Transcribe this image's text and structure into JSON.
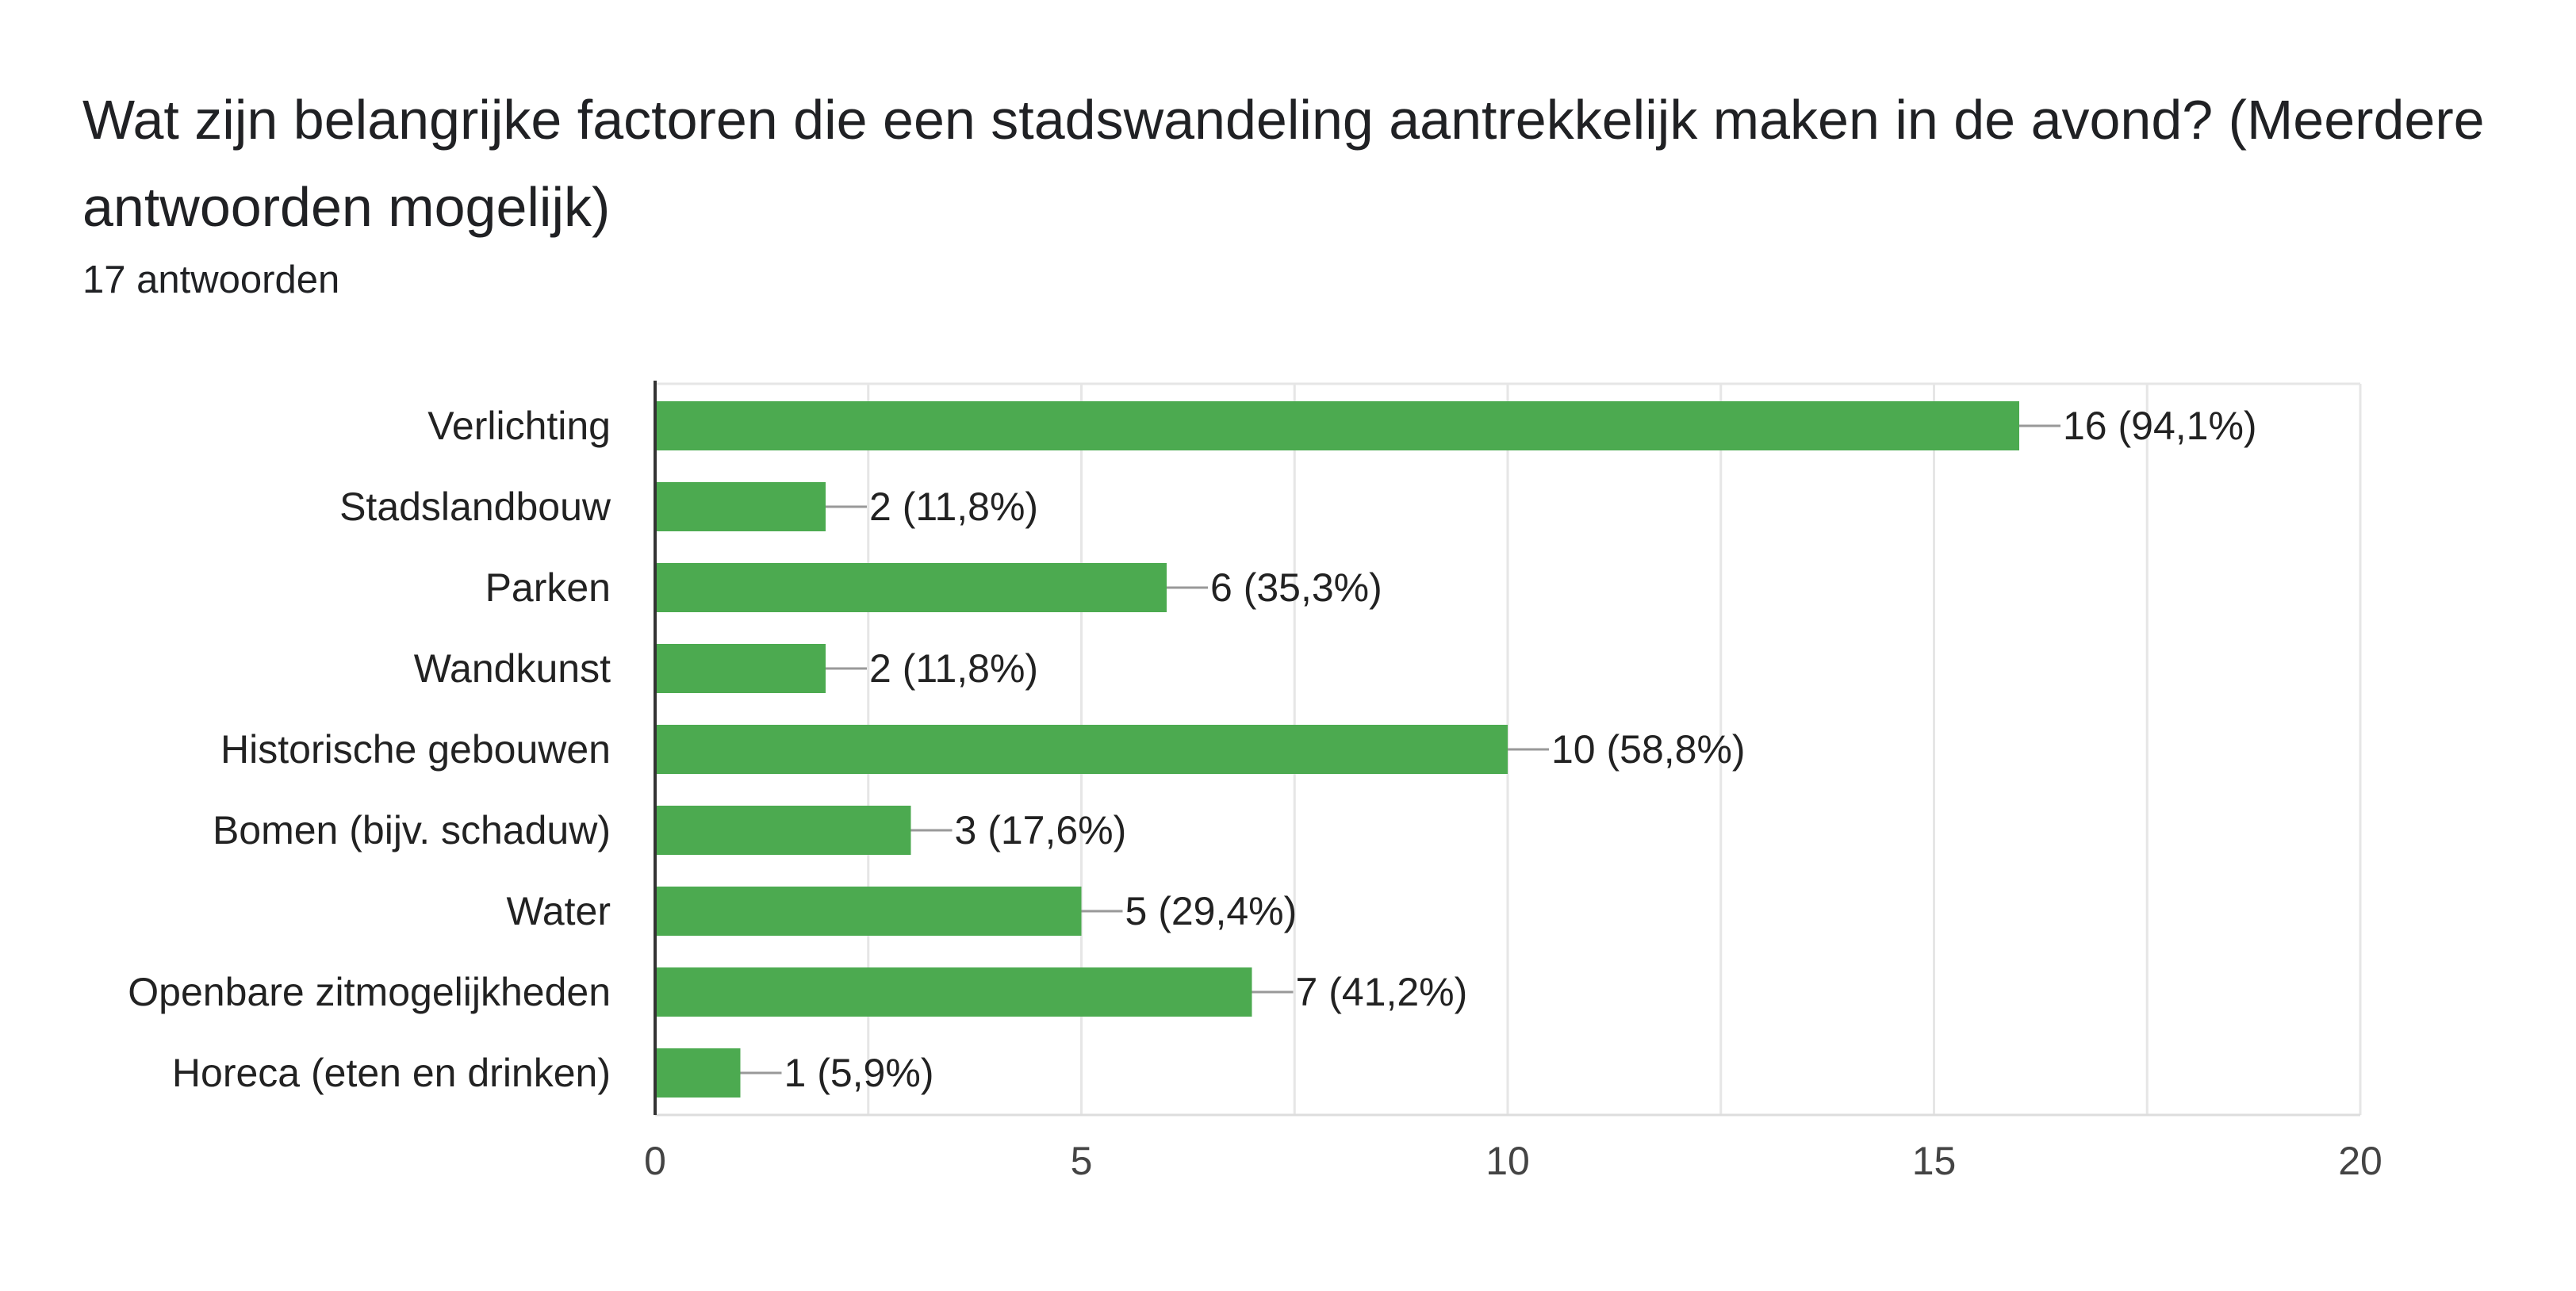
{
  "title": "Wat zijn belangrijke factoren die een stadswandeling aantrekkelijk maken in de avond? (Meerdere antwoorden mogelijk)",
  "response_count": "17 antwoorden",
  "colors": {
    "bar": "#4caa50",
    "gridline": "#e6e6e6",
    "axis": "#333333",
    "connector": "#999999"
  },
  "chart_data": {
    "type": "bar",
    "orientation": "horizontal",
    "title": "Wat zijn belangrijke factoren die een stadswandeling aantrekkelijk maken in de avond? (Meerdere antwoorden mogelijk)",
    "subtitle": "17 antwoorden",
    "categories": [
      "Verlichting",
      "Stadslandbouw",
      "Parken",
      "Wandkunst",
      "Historische gebouwen",
      "Bomen (bijv. schaduw)",
      "Water",
      "Openbare zitmogelijkheden",
      "Horeca (eten en drinken)"
    ],
    "values": [
      16,
      2,
      6,
      2,
      10,
      3,
      5,
      7,
      1
    ],
    "value_labels": [
      "16 (94,1%)",
      "2 (11,8%)",
      "6 (35,3%)",
      "2 (11,8%)",
      "10 (58,8%)",
      "3 (17,6%)",
      "5 (29,4%)",
      "7 (41,2%)",
      "1 (5,9%)"
    ],
    "xlim": [
      0,
      20
    ],
    "xticks": [
      0,
      5,
      10,
      15,
      20
    ],
    "xtick_labels": [
      "0",
      "5",
      "10",
      "15",
      "20"
    ],
    "grid": true
  }
}
